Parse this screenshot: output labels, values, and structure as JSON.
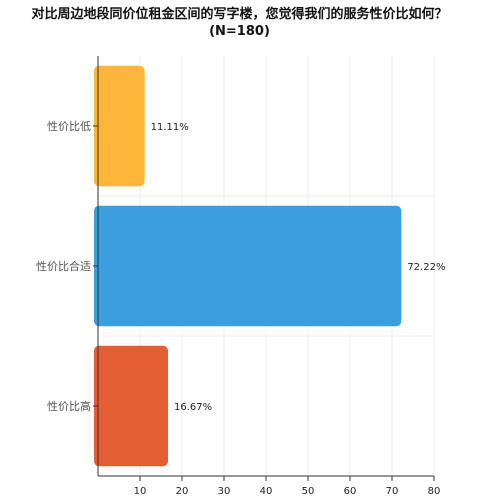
{
  "chart_data": {
    "type": "bar",
    "orientation": "horizontal",
    "title": "对比周边地段同价位租金区间的写字楼，您觉得我们的服务性价比如何？",
    "subtitle": "(N=180)",
    "categories": [
      "性价比低",
      "性价比合适",
      "性价比高"
    ],
    "values": [
      11.11,
      72.22,
      16.67
    ],
    "value_labels": [
      "11.11%",
      "72.22%",
      "16.67%"
    ],
    "colors": [
      "#FDB63A",
      "#3D9EDF",
      "#E35F33"
    ],
    "xlim": [
      0,
      80
    ],
    "xticks": [
      "10",
      "20",
      "30",
      "40",
      "50",
      "60",
      "70",
      "80"
    ],
    "grid": true,
    "xlabel": "",
    "ylabel": ""
  }
}
